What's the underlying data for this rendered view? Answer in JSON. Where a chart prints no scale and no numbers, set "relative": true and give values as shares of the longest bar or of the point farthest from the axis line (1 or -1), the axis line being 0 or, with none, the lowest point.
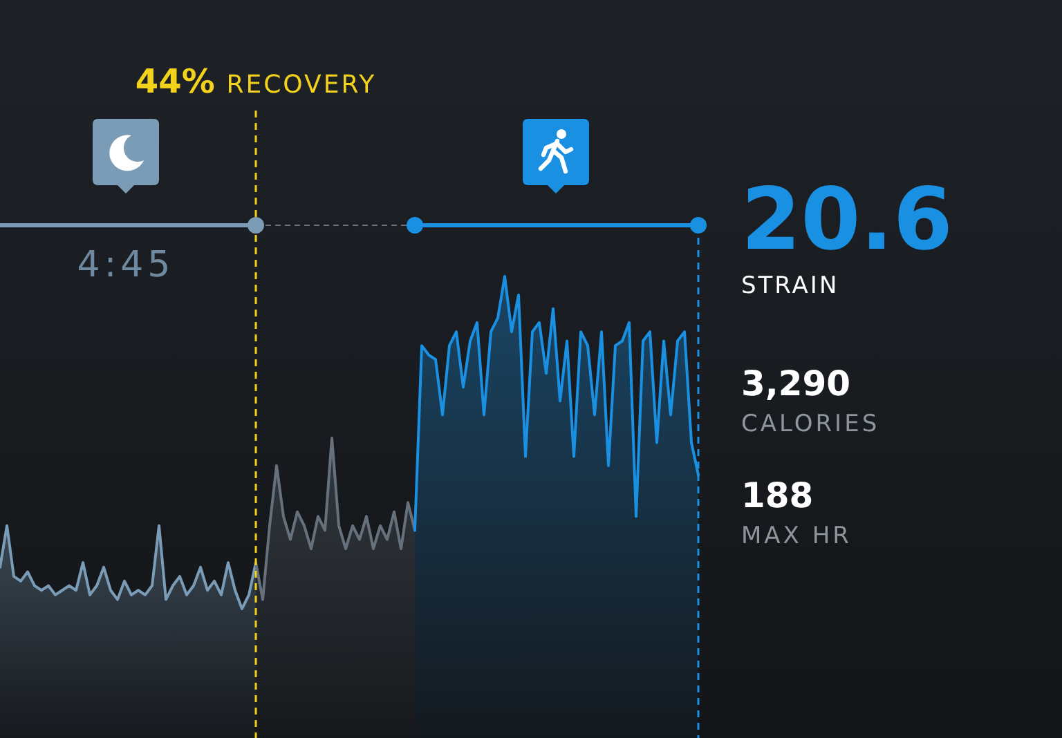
{
  "chart_data": {
    "type": "area",
    "relative": true,
    "tick_labels": false,
    "categories": [
      null,
      null,
      null,
      null,
      null,
      null,
      null,
      null,
      null,
      null,
      null,
      null,
      null,
      null,
      null,
      null,
      null,
      null,
      null,
      null,
      null,
      null,
      null,
      null,
      null,
      null,
      null,
      null,
      null,
      null,
      null,
      null,
      null,
      null,
      null,
      null,
      null,
      null,
      null,
      null,
      null,
      null,
      null,
      null,
      null,
      null,
      null,
      null,
      null,
      null,
      null,
      null,
      null,
      null,
      null,
      null,
      null,
      null,
      null,
      null,
      null,
      null,
      null,
      null,
      null,
      null,
      null,
      null,
      null,
      null,
      null,
      null,
      null,
      null,
      null,
      null,
      null,
      null,
      null,
      null,
      null,
      null,
      null,
      null,
      null,
      null,
      null,
      null,
      null,
      null,
      null,
      null,
      null,
      null,
      null,
      null,
      null,
      null,
      null,
      null,
      null,
      null
    ],
    "series": [
      {
        "color": "#7b9cb6",
        "values": [
          0.37,
          0.46,
          0.35,
          0.34,
          0.36,
          0.33,
          0.32,
          0.33,
          0.31,
          0.32,
          0.33,
          0.32,
          0.38,
          0.31,
          0.33,
          0.37,
          0.32,
          0.3,
          0.34,
          0.31,
          0.32,
          0.31,
          0.33,
          0.46,
          0.3,
          0.33,
          0.35,
          0.31,
          0.33,
          0.37,
          0.32,
          0.34,
          0.31,
          0.38,
          0.32,
          0.28,
          0.31,
          0.38,
          null,
          null,
          null,
          null,
          null,
          null,
          null,
          null,
          null,
          null,
          null,
          null,
          null,
          null,
          null,
          null,
          null,
          null,
          null,
          null,
          null,
          null,
          null,
          null,
          null,
          null,
          null,
          null,
          null,
          null,
          null,
          null,
          null,
          null,
          null,
          null,
          null,
          null,
          null,
          null,
          null,
          null,
          null,
          null,
          null,
          null,
          null,
          null,
          null,
          null,
          null,
          null,
          null,
          null,
          null,
          null,
          null,
          null,
          null,
          null,
          null,
          null,
          null,
          null
        ]
      },
      {
        "color": "#66717c",
        "values": [
          null,
          null,
          null,
          null,
          null,
          null,
          null,
          null,
          null,
          null,
          null,
          null,
          null,
          null,
          null,
          null,
          null,
          null,
          null,
          null,
          null,
          null,
          null,
          null,
          null,
          null,
          null,
          null,
          null,
          null,
          null,
          null,
          null,
          null,
          null,
          null,
          null,
          0.38,
          0.3,
          0.46,
          0.59,
          0.48,
          0.43,
          0.49,
          0.46,
          0.41,
          0.48,
          0.45,
          0.65,
          0.46,
          0.41,
          0.46,
          0.43,
          0.48,
          0.41,
          0.46,
          0.43,
          0.49,
          0.41,
          0.51,
          0.45,
          null,
          null,
          null,
          null,
          null,
          null,
          null,
          null,
          null,
          null,
          null,
          null,
          null,
          null,
          null,
          null,
          null,
          null,
          null,
          null,
          null,
          null,
          null,
          null,
          null,
          null,
          null,
          null,
          null,
          null,
          null,
          null,
          null,
          null,
          null,
          null,
          null,
          null,
          null,
          null,
          null
        ]
      },
      {
        "color": "#1a90e2",
        "values": [
          null,
          null,
          null,
          null,
          null,
          null,
          null,
          null,
          null,
          null,
          null,
          null,
          null,
          null,
          null,
          null,
          null,
          null,
          null,
          null,
          null,
          null,
          null,
          null,
          null,
          null,
          null,
          null,
          null,
          null,
          null,
          null,
          null,
          null,
          null,
          null,
          null,
          null,
          null,
          null,
          null,
          null,
          null,
          null,
          null,
          null,
          null,
          null,
          null,
          null,
          null,
          null,
          null,
          null,
          null,
          null,
          null,
          null,
          null,
          null,
          0.45,
          0.85,
          0.83,
          0.82,
          0.7,
          0.85,
          0.88,
          0.76,
          0.86,
          0.9,
          0.7,
          0.88,
          0.91,
          1,
          0.88,
          0.96,
          0.61,
          0.88,
          0.9,
          0.79,
          0.93,
          0.73,
          0.86,
          0.61,
          0.88,
          0.85,
          0.7,
          0.88,
          0.59,
          0.85,
          0.86,
          0.9,
          0.48,
          0.86,
          0.88,
          0.64,
          0.86,
          0.7,
          0.86,
          0.88,
          0.64,
          0.57
        ]
      }
    ],
    "annotations": [
      "44% RECOVERY",
      "4:45",
      "20.6",
      "STRAIN",
      "3,290",
      "CALORIES",
      "188",
      "MAX HR"
    ]
  }
}
